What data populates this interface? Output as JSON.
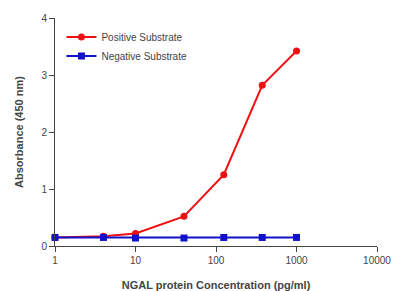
{
  "chart_data": {
    "type": "line",
    "xlabel": "NGAL protein Concentration (pg/ml)",
    "ylabel": "Absorbance (450 nm)",
    "x": [
      1,
      4,
      10,
      40,
      125,
      375,
      1000
    ],
    "series": [
      {
        "name": "Positive Substrate",
        "color": "#EE1111",
        "marker": "circle",
        "values": [
          0.15,
          0.17,
          0.22,
          0.52,
          1.25,
          2.82,
          3.42
        ]
      },
      {
        "name": "Negative Substrate",
        "color": "#1111CC",
        "marker": "square",
        "values": [
          0.15,
          0.15,
          0.14,
          0.14,
          0.15,
          0.15,
          0.15
        ]
      }
    ],
    "xlim": [
      1,
      10000
    ],
    "ylim": [
      0,
      4
    ],
    "xticks": [
      1,
      10,
      100,
      1000,
      10000
    ],
    "yticks": [
      0,
      1,
      2,
      3,
      4
    ],
    "log": "x",
    "grid": false,
    "legend": "upper left"
  }
}
